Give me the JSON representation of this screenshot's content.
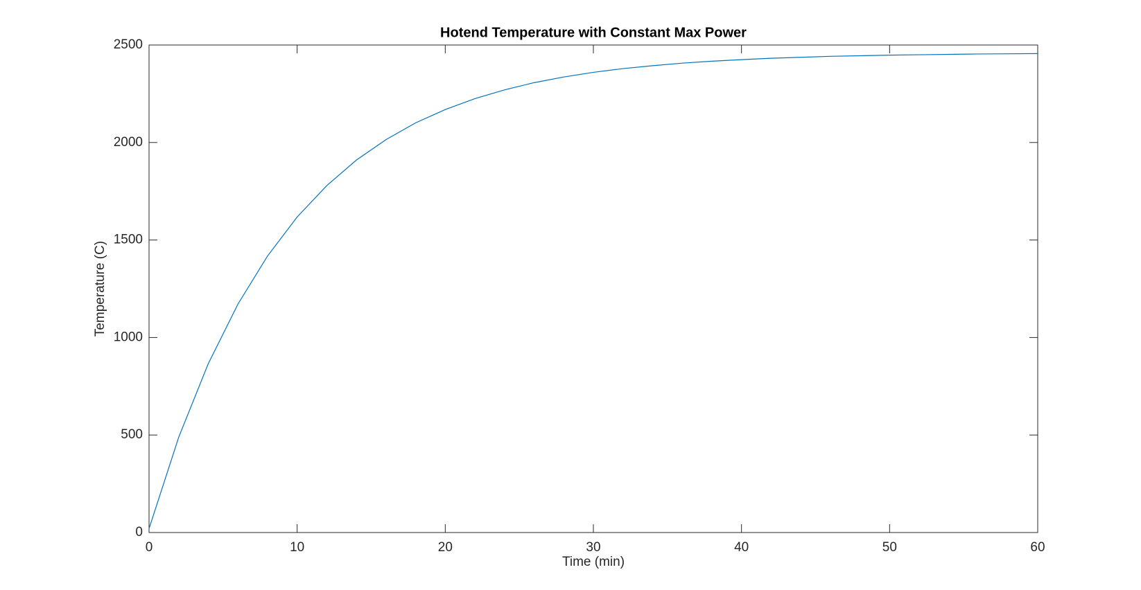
{
  "chart_data": {
    "type": "line",
    "title": "Hotend Temperature with Constant Max Power",
    "x_label": "Time (min)",
    "y_label": "Temperature (C)",
    "x": [
      0,
      2,
      4,
      6,
      8,
      10,
      12,
      14,
      16,
      18,
      20,
      22,
      24,
      26,
      28,
      30,
      32,
      34,
      36,
      38,
      40,
      42,
      44,
      46,
      48,
      50,
      52,
      54,
      56,
      58,
      60
    ],
    "series": [
      {
        "color": "#0072bd",
        "values": [
          20,
          488,
          866,
          1171,
          1418,
          1618,
          1779,
          1910,
          2015,
          2101,
          2169,
          2225,
          2270,
          2307,
          2336,
          2360,
          2379,
          2394,
          2407,
          2417,
          2425,
          2432,
          2437,
          2442,
          2445,
          2448,
          2450,
          2452,
          2454,
          2455,
          2456
        ]
      }
    ],
    "xlim": [
      0,
      60
    ],
    "xticks": [
      0,
      10,
      20,
      30,
      40,
      50,
      60
    ],
    "ylim": [
      0,
      2500
    ],
    "yticks": [
      0,
      500,
      1000,
      1500,
      2000,
      2500
    ]
  }
}
